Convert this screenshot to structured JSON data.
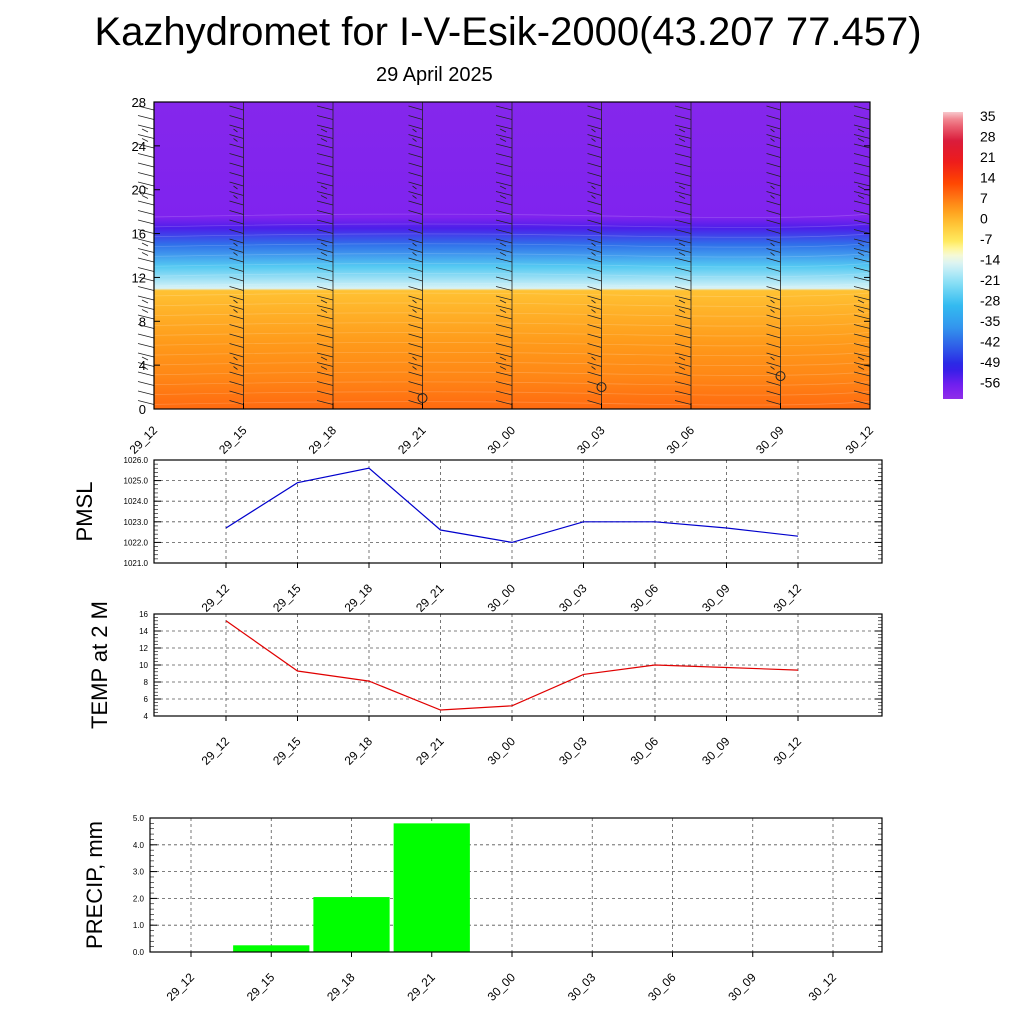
{
  "title": "Kazhydromet for I-V-Esik-2000(43.207 77.457)",
  "subtitle": "29 April 2025",
  "times": [
    "29_12",
    "29_15",
    "29_18",
    "29_21",
    "30_00",
    "30_03",
    "30_06",
    "30_09",
    "30_12"
  ],
  "colors": {
    "pmsl_line": "#0000cc",
    "temp_line": "#e00000",
    "precip_bar": "#00ff00",
    "grid": "#555555"
  },
  "chart_data": [
    {
      "type": "heatmap",
      "name": "vertical-temperature-section",
      "x_categories": [
        "29_12",
        "29_15",
        "29_18",
        "29_21",
        "30_00",
        "30_03",
        "30_06",
        "30_09",
        "30_12"
      ],
      "ylim": [
        0,
        28
      ],
      "y_ticks": [
        "0",
        "4",
        "8",
        "12",
        "16",
        "20",
        "24",
        "28"
      ],
      "colorbar": {
        "ticks": [
          "35",
          "28",
          "21",
          "14",
          "7",
          "0",
          "-7",
          "-14",
          "-21",
          "-28",
          "-35",
          "-42",
          "-49",
          "-56"
        ],
        "range": [
          -60,
          38
        ]
      },
      "temperature_profile": [
        {
          "y": 0,
          "t": 10
        },
        {
          "y": 3,
          "t": 7
        },
        {
          "y": 6,
          "t": 5
        },
        {
          "y": 9,
          "t": 2
        },
        {
          "y": 10.8,
          "t": 0
        },
        {
          "y": 11,
          "t": -14
        },
        {
          "y": 13,
          "t": -25
        },
        {
          "y": 15,
          "t": -40
        },
        {
          "y": 16.5,
          "t": -52
        },
        {
          "y": 17.5,
          "t": -57
        },
        {
          "y": 28,
          "t": -58
        }
      ],
      "station_markers": [
        {
          "x": "29_21",
          "y": 1
        },
        {
          "x": "30_03",
          "y": 2
        },
        {
          "x": "30_09",
          "y": 3
        }
      ]
    },
    {
      "type": "line",
      "name": "PMSL",
      "ylabel": "PMSL",
      "x": [
        "29_12",
        "29_15",
        "29_18",
        "29_21",
        "30_00",
        "30_03",
        "30_06",
        "30_09",
        "30_12"
      ],
      "values": [
        1022.7,
        1024.9,
        1025.6,
        1022.6,
        1022.0,
        1023.0,
        1023.0,
        1022.7,
        1022.3
      ],
      "ylim": [
        1021.0,
        1026.0
      ],
      "y_ticks": [
        "1021.0",
        "1022.0",
        "1023.0",
        "1024.0",
        "1025.0",
        "1026.0"
      ]
    },
    {
      "type": "line",
      "name": "TEMP at 2 M",
      "ylabel": "TEMP at 2 M",
      "x": [
        "29_12",
        "29_15",
        "29_18",
        "29_21",
        "30_00",
        "30_03",
        "30_06",
        "30_09",
        "30_12"
      ],
      "values": [
        15.2,
        9.3,
        8.1,
        4.7,
        5.2,
        8.9,
        10.0,
        9.7,
        9.4
      ],
      "ylim": [
        4,
        16
      ],
      "y_ticks": [
        "4",
        "6",
        "8",
        "10",
        "12",
        "14",
        "16"
      ]
    },
    {
      "type": "bar",
      "name": "PRECIP, mm",
      "ylabel": "PRECIP, mm",
      "x": [
        "29_12",
        "29_15",
        "29_18",
        "29_21",
        "30_00",
        "30_03",
        "30_06",
        "30_09",
        "30_12"
      ],
      "values": [
        0,
        0.25,
        2.05,
        4.8,
        0,
        0,
        0,
        0,
        0
      ],
      "ylim": [
        0,
        5.0
      ],
      "y_ticks": [
        "0.0",
        "1.0",
        "2.0",
        "3.0",
        "4.0",
        "5.0"
      ]
    }
  ]
}
